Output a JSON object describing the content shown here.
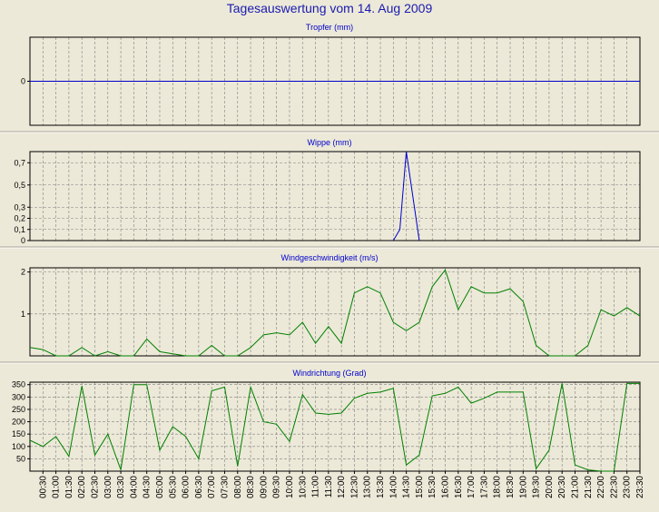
{
  "title": "Tagesauswertung vom 14. Aug 2009",
  "times": [
    "00:30",
    "01:00",
    "01:30",
    "02:00",
    "02:30",
    "03:00",
    "03:30",
    "04:00",
    "04:30",
    "05:00",
    "05:30",
    "06:00",
    "06:30",
    "07:00",
    "07:30",
    "08:00",
    "08:30",
    "09:00",
    "09:30",
    "10:00",
    "10:30",
    "11:00",
    "11:30",
    "12:00",
    "12:30",
    "13:00",
    "13:30",
    "14:00",
    "14:30",
    "15:00",
    "15:30",
    "16:00",
    "16:30",
    "17:00",
    "17:30",
    "18:00",
    "18:30",
    "19:00",
    "19:30",
    "20:00",
    "20:30",
    "21:00",
    "21:30",
    "22:00",
    "22:30",
    "23:00",
    "23:30"
  ],
  "colors": {
    "blue_series": "#0000CC",
    "green_series": "#008000",
    "background": "#ECE9D8",
    "title_text": "#1a1ab0"
  },
  "chart_data": [
    {
      "type": "line",
      "title": "Tropfer (mm)",
      "ylim": [
        -0.5,
        0.5
      ],
      "yticks": [
        {
          "v": 0,
          "label": "0"
        }
      ],
      "grid": true,
      "series": [
        {
          "color": "#0000CC",
          "x": [
            0,
            47
          ],
          "values": [
            0,
            0
          ]
        }
      ]
    },
    {
      "type": "line",
      "title": "Wippe (mm)",
      "ylim": [
        0,
        0.8
      ],
      "yticks": [
        {
          "v": 0,
          "label": "0"
        },
        {
          "v": 0.1,
          "label": "0,1"
        },
        {
          "v": 0.2,
          "label": "0,2"
        },
        {
          "v": 0.3,
          "label": "0,3"
        },
        {
          "v": 0.5,
          "label": "0,5"
        },
        {
          "v": 0.7,
          "label": "0,7"
        }
      ],
      "grid": true,
      "series": [
        {
          "color": "#0000CC",
          "x": [
            28,
            28.5,
            29,
            30,
            30
          ],
          "values": [
            0,
            0.1,
            0.8,
            0,
            0
          ]
        }
      ]
    },
    {
      "type": "line",
      "title": "Windgeschwindigkeit (m/s)",
      "ylim": [
        0,
        2.1
      ],
      "yticks": [
        {
          "v": 1,
          "label": "1"
        },
        {
          "v": 2,
          "label": "2"
        }
      ],
      "grid": true,
      "series": [
        {
          "color": "#008000",
          "x": [
            0,
            1,
            2,
            3,
            4,
            5,
            6,
            7,
            8,
            9,
            10,
            11,
            12,
            13,
            14,
            15,
            16,
            17,
            18,
            19,
            20,
            21,
            22,
            23,
            24,
            25,
            26,
            27,
            28,
            29,
            30,
            31,
            32,
            33,
            34,
            35,
            36,
            37,
            38,
            39,
            40,
            41,
            42,
            43,
            44,
            45,
            46,
            47
          ],
          "values": [
            0.2,
            0.15,
            0,
            0,
            0.2,
            0,
            0.1,
            0,
            0,
            0.4,
            0.1,
            0.05,
            0,
            0,
            0.25,
            0,
            0,
            0.2,
            0.5,
            0.55,
            0.5,
            0.8,
            0.3,
            0.7,
            0.3,
            1.5,
            1.65,
            1.5,
            0.8,
            0.6,
            0.8,
            1.65,
            2.05,
            1.1,
            1.65,
            1.5,
            1.5,
            1.6,
            1.3,
            0.25,
            0,
            0,
            0,
            0.25,
            1.1,
            0.95,
            1.15,
            0.95
          ]
        }
      ]
    },
    {
      "type": "line",
      "title": "Windrichtung (Grad)",
      "ylim": [
        0,
        360
      ],
      "yticks": [
        {
          "v": 50,
          "label": "50"
        },
        {
          "v": 100,
          "label": "100"
        },
        {
          "v": 150,
          "label": "150"
        },
        {
          "v": 200,
          "label": "200"
        },
        {
          "v": 250,
          "label": "250"
        },
        {
          "v": 300,
          "label": "300"
        },
        {
          "v": 350,
          "label": "350"
        }
      ],
      "grid": true,
      "series": [
        {
          "color": "#008000",
          "x": [
            0,
            1,
            2,
            3,
            4,
            5,
            6,
            7,
            8,
            9,
            10,
            11,
            12,
            13,
            14,
            15,
            16,
            17,
            18,
            19,
            20,
            21,
            22,
            23,
            24,
            25,
            26,
            27,
            28,
            29,
            30,
            31,
            32,
            33,
            34,
            35,
            36,
            37,
            38,
            39,
            40,
            41,
            42,
            43,
            44,
            45,
            46,
            47
          ],
          "values": [
            125,
            100,
            140,
            60,
            345,
            65,
            150,
            5,
            350,
            350,
            85,
            180,
            140,
            50,
            325,
            340,
            20,
            340,
            200,
            190,
            120,
            310,
            235,
            230,
            235,
            295,
            315,
            320,
            335,
            25,
            65,
            305,
            315,
            340,
            275,
            295,
            320,
            320,
            320,
            10,
            85,
            355,
            25,
            5,
            0,
            0,
            355,
            355
          ]
        }
      ]
    }
  ]
}
